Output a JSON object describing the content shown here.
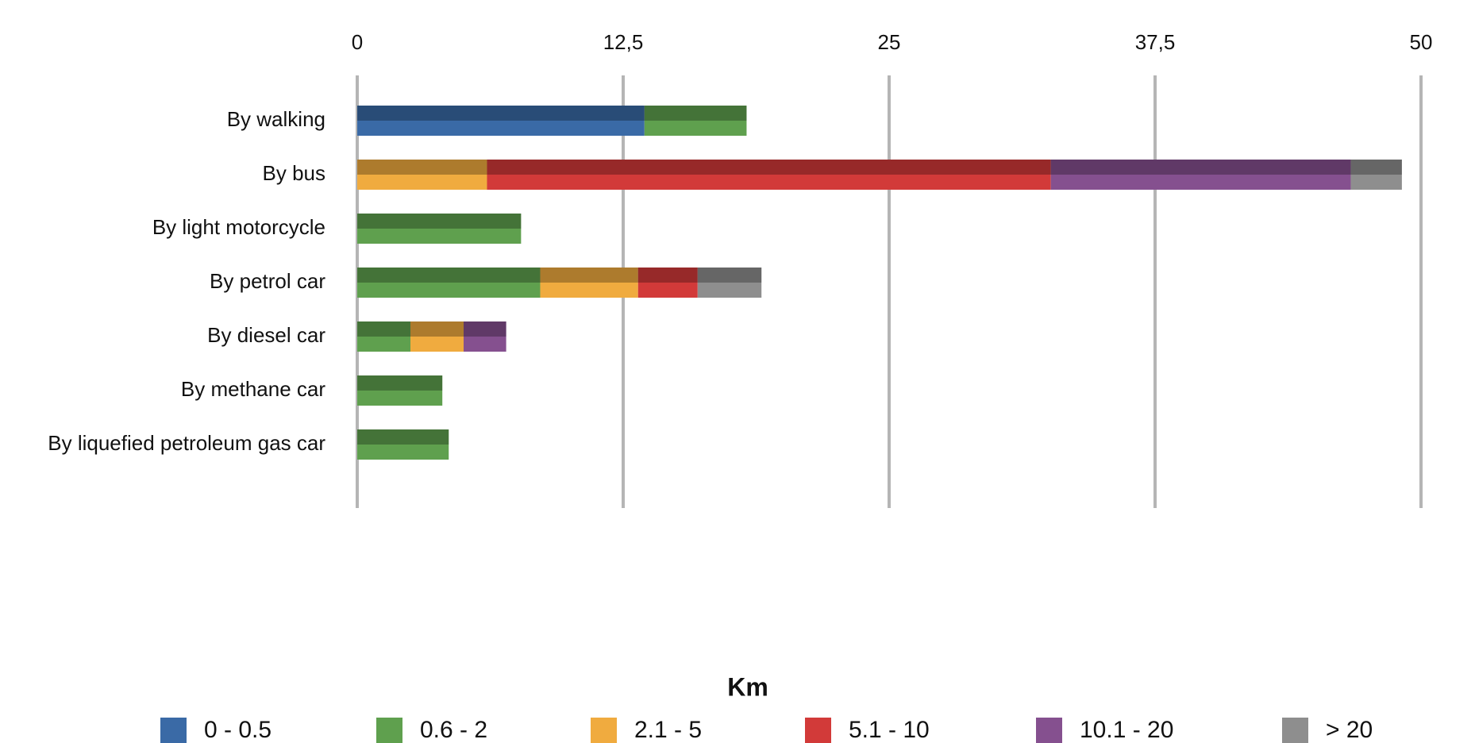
{
  "chart_data": {
    "type": "stacked-bar-horizontal",
    "categories": [
      "By walking",
      "By bus",
      "By light motorcycle",
      "By petrol car",
      "By diesel car",
      "By methane car",
      "By liquefied petroleum gas car"
    ],
    "series": [
      {
        "name": "0 - 0.5",
        "color": "#3a6aa6",
        "values": [
          13.5,
          0,
          0,
          0,
          0,
          0,
          0
        ]
      },
      {
        "name": "0.6 - 2",
        "color": "#5fa04e",
        "values": [
          4.8,
          0,
          7.7,
          8.6,
          2.5,
          4,
          4.3
        ]
      },
      {
        "name": "2.1 - 5",
        "color": "#f0ab3f",
        "values": [
          0,
          6.1,
          0,
          4.6,
          2.5,
          0,
          0
        ]
      },
      {
        "name": "5.1 - 10",
        "color": "#d23a39",
        "values": [
          0,
          26.5,
          0,
          2.8,
          0,
          0,
          0
        ]
      },
      {
        "name": "10.1 - 20",
        "color": "#85508f",
        "values": [
          0,
          14.1,
          0,
          0,
          2,
          0,
          0
        ]
      },
      {
        "name": "> 20",
        "color": "#8e8e8e",
        "values": [
          0,
          2.4,
          0,
          3,
          0,
          0,
          0
        ]
      }
    ],
    "xlim": [
      0,
      50
    ],
    "xticks": [
      0,
      {
        "value": 12.5,
        "label": "12,5"
      },
      25,
      {
        "value": 37.5,
        "label": "37,5"
      },
      50
    ],
    "grid": true,
    "legend_title": "Km",
    "legend_position": "bottom"
  }
}
